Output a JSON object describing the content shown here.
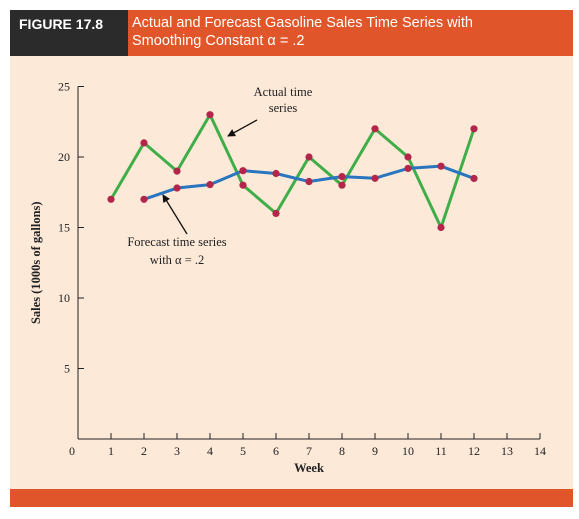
{
  "figure": {
    "label": "FIGURE 17.8",
    "title_line1": "Actual and Forecast Gasoline Sales Time Series with",
    "title_line2": "Smoothing Constant α = .2"
  },
  "colors": {
    "header_bg": "#e0562a",
    "label_bg": "#2b2b2b",
    "panel_bg": "#fde9d8",
    "actual_line": "#3fae48",
    "forecast_line": "#2a75c0",
    "marker": "#b3264a"
  },
  "chart_data": {
    "type": "line",
    "xlabel": "Week",
    "ylabel": "Sales (1000s of gallons)",
    "xlim": [
      0,
      14
    ],
    "ylim": [
      0,
      25
    ],
    "xticks": [
      0,
      1,
      2,
      3,
      4,
      5,
      6,
      7,
      8,
      9,
      10,
      11,
      12,
      13,
      14
    ],
    "yticks": [
      5,
      10,
      15,
      20,
      25
    ],
    "grid": false,
    "series": [
      {
        "id": "actual",
        "x": [
          1,
          2,
          3,
          4,
          5,
          6,
          7,
          8,
          9,
          10,
          11,
          12
        ],
        "y": [
          17,
          21,
          19,
          23,
          18,
          16,
          20,
          18,
          22,
          20,
          15,
          22
        ]
      },
      {
        "id": "forecast",
        "x": [
          2,
          3,
          4,
          5,
          6,
          7,
          8,
          9,
          10,
          11,
          12
        ],
        "y": [
          17,
          17.8,
          18.04,
          19.03,
          18.83,
          18.26,
          18.61,
          18.49,
          19.19,
          19.35,
          18.48
        ]
      }
    ],
    "annotations": [
      {
        "id": "actual",
        "lines": [
          "Actual time",
          "series"
        ]
      },
      {
        "id": "forecast",
        "lines": [
          "Forecast time series",
          "with α = .2"
        ]
      }
    ]
  }
}
